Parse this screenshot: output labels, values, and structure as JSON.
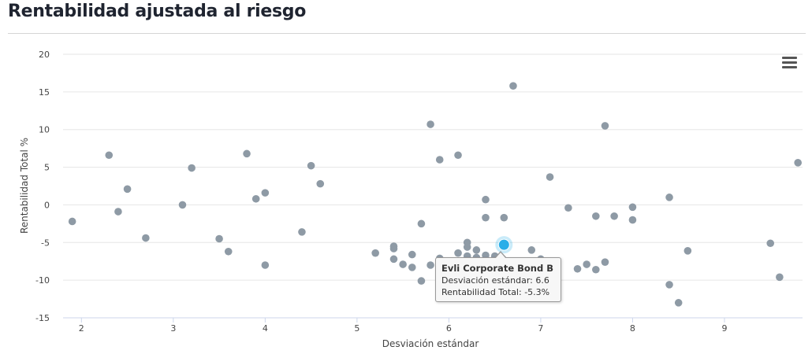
{
  "header": {
    "title": "Rentabilidad ajustada al riesgo"
  },
  "chart_data": {
    "type": "scatter",
    "title": "Rentabilidad ajustada al riesgo",
    "xlabel": "Desviación estándar",
    "ylabel": "Rentabilidad Total %",
    "xlim": [
      1.8,
      9.85
    ],
    "ylim": [
      -15,
      20
    ],
    "xticks": [
      2,
      3,
      4,
      5,
      6,
      7,
      8,
      9
    ],
    "yticks": [
      -15,
      -10,
      -5,
      0,
      5,
      10,
      15,
      20
    ],
    "grid": "horizontal",
    "point_color": "#8e9aa5",
    "highlight_color": "#29aee8",
    "points": [
      {
        "x": 1.9,
        "y": -2.2
      },
      {
        "x": 2.3,
        "y": 6.6
      },
      {
        "x": 2.4,
        "y": -0.9
      },
      {
        "x": 2.5,
        "y": 2.1
      },
      {
        "x": 2.7,
        "y": -4.4
      },
      {
        "x": 3.1,
        "y": 0.0
      },
      {
        "x": 3.2,
        "y": 4.9
      },
      {
        "x": 3.5,
        "y": -4.5
      },
      {
        "x": 3.6,
        "y": -6.2
      },
      {
        "x": 3.8,
        "y": 6.8
      },
      {
        "x": 3.9,
        "y": 0.8
      },
      {
        "x": 4.0,
        "y": 1.6
      },
      {
        "x": 4.0,
        "y": -8.0
      },
      {
        "x": 4.4,
        "y": -3.6
      },
      {
        "x": 4.5,
        "y": 5.2
      },
      {
        "x": 4.6,
        "y": 2.8
      },
      {
        "x": 5.2,
        "y": -6.4
      },
      {
        "x": 5.4,
        "y": -5.5
      },
      {
        "x": 5.4,
        "y": -5.8
      },
      {
        "x": 5.4,
        "y": -7.2
      },
      {
        "x": 5.5,
        "y": -7.9
      },
      {
        "x": 5.6,
        "y": -6.6
      },
      {
        "x": 5.6,
        "y": -8.3
      },
      {
        "x": 5.7,
        "y": -2.5
      },
      {
        "x": 5.7,
        "y": -10.1
      },
      {
        "x": 5.8,
        "y": 10.7
      },
      {
        "x": 5.8,
        "y": -8.0
      },
      {
        "x": 5.9,
        "y": 6.0
      },
      {
        "x": 5.9,
        "y": -7.1
      },
      {
        "x": 5.9,
        "y": -9.2
      },
      {
        "x": 5.9,
        "y": -10.0
      },
      {
        "x": 6.0,
        "y": -8.6
      },
      {
        "x": 6.1,
        "y": 6.6
      },
      {
        "x": 6.1,
        "y": -6.4
      },
      {
        "x": 6.1,
        "y": -7.6
      },
      {
        "x": 6.2,
        "y": -5.0
      },
      {
        "x": 6.2,
        "y": -5.6
      },
      {
        "x": 6.2,
        "y": -6.8
      },
      {
        "x": 6.3,
        "y": -6.0
      },
      {
        "x": 6.3,
        "y": -7.0
      },
      {
        "x": 6.4,
        "y": 0.7
      },
      {
        "x": 6.4,
        "y": -1.7
      },
      {
        "x": 6.4,
        "y": -6.7
      },
      {
        "x": 6.5,
        "y": -6.8
      },
      {
        "x": 6.6,
        "y": -1.7
      },
      {
        "x": 6.7,
        "y": 15.8
      },
      {
        "x": 6.9,
        "y": -6.0
      },
      {
        "x": 7.0,
        "y": -7.2
      },
      {
        "x": 7.1,
        "y": 3.7
      },
      {
        "x": 7.3,
        "y": -0.4
      },
      {
        "x": 7.4,
        "y": -8.5
      },
      {
        "x": 7.5,
        "y": -7.9
      },
      {
        "x": 7.6,
        "y": -1.5
      },
      {
        "x": 7.6,
        "y": -8.6
      },
      {
        "x": 7.7,
        "y": 10.5
      },
      {
        "x": 7.7,
        "y": -7.6
      },
      {
        "x": 7.8,
        "y": -1.5
      },
      {
        "x": 8.0,
        "y": -0.3
      },
      {
        "x": 8.0,
        "y": -2.0
      },
      {
        "x": 8.4,
        "y": 1.0
      },
      {
        "x": 8.4,
        "y": -10.6
      },
      {
        "x": 8.5,
        "y": -13.0
      },
      {
        "x": 8.6,
        "y": -6.1
      },
      {
        "x": 9.5,
        "y": -5.1
      },
      {
        "x": 9.6,
        "y": -9.6
      },
      {
        "x": 9.8,
        "y": 5.6
      }
    ],
    "highlight": {
      "x": 6.6,
      "y": -5.3
    }
  },
  "tooltip": {
    "name": "Evli Corporate Bond B",
    "line1": "Desviación estándar: 6.6",
    "line2": "Rentabilidad Total: -5.3%"
  },
  "toolbar": {
    "menu_icon": "hamburger-menu-icon"
  }
}
